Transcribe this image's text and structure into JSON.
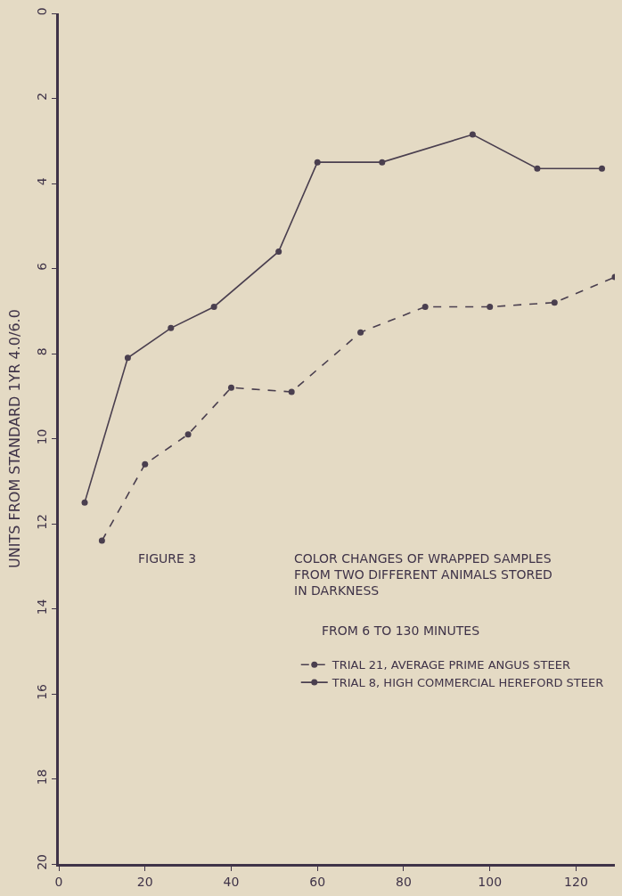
{
  "chart_data": {
    "type": "line",
    "title": "FIGURE 3",
    "subtitle": "COLOR CHANGES OF WRAPPED SAMPLES FROM TWO DIFFERENT ANIMALS STORED IN DARKNESS",
    "annotations": [
      "FROM 6 TO 130 MINUTES"
    ],
    "ylabel": "UNITS FROM STANDARD 1YR 4.0/6.0",
    "series": [
      {
        "name": "TRIAL 21, AVERAGE PRIME ANGUS STEER",
        "color": "#4a3f4f",
        "line_style": "dashed",
        "x": [
          10,
          20,
          30,
          40,
          54,
          70,
          85,
          100,
          115,
          129
        ],
        "values": [
          12.4,
          10.6,
          9.9,
          8.8,
          8.9,
          7.5,
          6.9,
          6.9,
          6.8,
          6.2
        ]
      },
      {
        "name": "TRIAL 8, HIGH COMMERCIAL HEREFORD STEER",
        "color": "#4a3f4f",
        "line_style": "solid",
        "x": [
          6,
          16,
          26,
          36,
          51,
          60,
          75,
          96,
          111,
          126
        ],
        "values": [
          11.5,
          8.1,
          7.4,
          6.9,
          5.6,
          3.5,
          3.5,
          2.85,
          3.65,
          3.65
        ]
      }
    ],
    "marker": "circle",
    "xlim": [
      0,
      129
    ],
    "xticks": [
      0,
      20,
      40,
      60,
      80,
      100,
      120
    ],
    "ylim": [
      20,
      0
    ],
    "yticks": [
      0,
      2,
      4,
      6,
      8,
      10,
      12,
      14,
      16,
      18,
      20
    ],
    "grid": false,
    "legend": "bottom right"
  }
}
